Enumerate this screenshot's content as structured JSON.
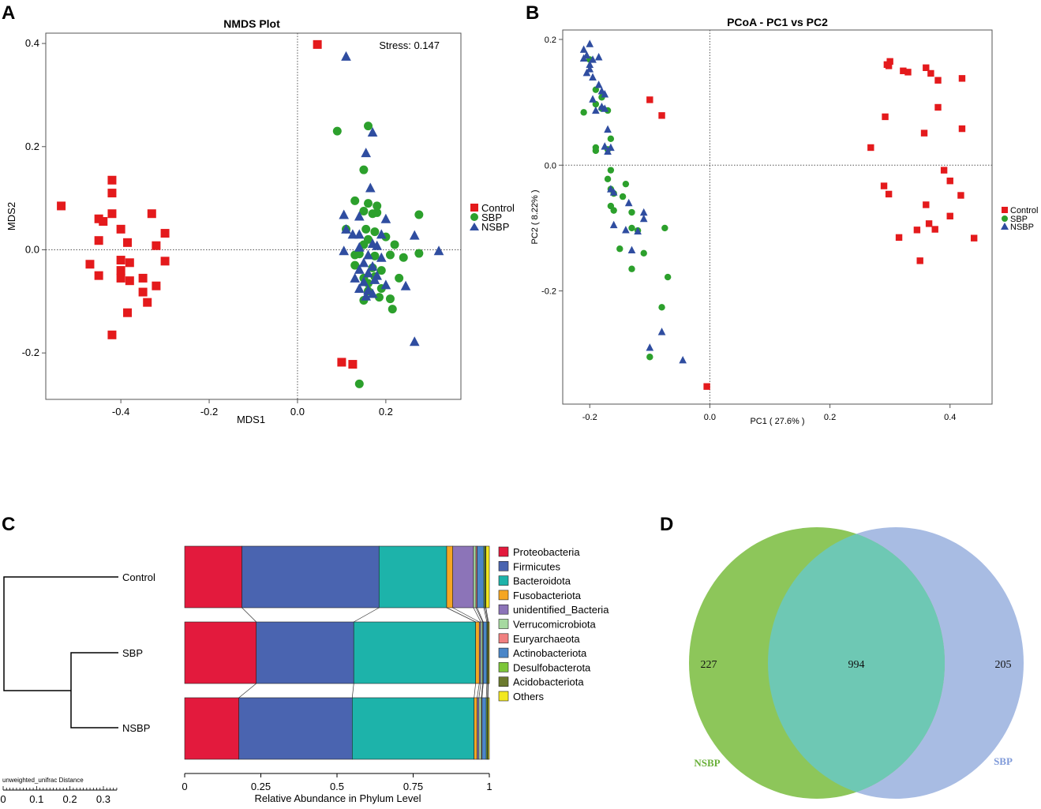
{
  "panel_labels": [
    "A",
    "B",
    "C",
    "D"
  ],
  "groups": {
    "Control": {
      "color": "#e41a1c",
      "marker": "square"
    },
    "SBP": {
      "color": "#2ca02c",
      "marker": "circle"
    },
    "NSBP": {
      "color": "#2f4da0",
      "marker": "triangle"
    }
  },
  "chart_data": [
    {
      "id": "A",
      "type": "scatter",
      "title": "NMDS Plot",
      "xlabel": "MDS1",
      "ylabel": "MDS2",
      "annotation": "Stress:  0.147",
      "xlim": [
        -0.57,
        0.37
      ],
      "ylim": [
        -0.29,
        0.42
      ],
      "xticks": [
        -0.4,
        -0.2,
        0.0,
        0.2
      ],
      "xtick_labels": [
        "-0.4",
        "-0.2",
        "0.0",
        "0.2"
      ],
      "yticks": [
        -0.2,
        0.0,
        0.2,
        0.4
      ],
      "ytick_labels": [
        "-0.2",
        "0.0",
        "0.2",
        "0.4"
      ],
      "legend": [
        "Control",
        "SBP",
        "NSBP"
      ],
      "series": [
        {
          "name": "Control",
          "points": [
            [
              -0.535,
              0.085
            ],
            [
              -0.42,
              0.135
            ],
            [
              -0.42,
              0.11
            ],
            [
              -0.45,
              0.06
            ],
            [
              -0.44,
              0.055
            ],
            [
              -0.42,
              0.07
            ],
            [
              -0.33,
              0.07
            ],
            [
              -0.3,
              0.032
            ],
            [
              -0.4,
              0.04
            ],
            [
              -0.45,
              0.018
            ],
            [
              -0.385,
              0.014
            ],
            [
              -0.32,
              0.008
            ],
            [
              -0.47,
              -0.028
            ],
            [
              -0.4,
              -0.02
            ],
            [
              -0.38,
              -0.025
            ],
            [
              -0.3,
              -0.022
            ],
            [
              -0.45,
              -0.05
            ],
            [
              -0.4,
              -0.04
            ],
            [
              -0.4,
              -0.055
            ],
            [
              -0.38,
              -0.06
            ],
            [
              -0.35,
              -0.055
            ],
            [
              -0.32,
              -0.07
            ],
            [
              -0.35,
              -0.082
            ],
            [
              -0.34,
              -0.102
            ],
            [
              -0.385,
              -0.122
            ],
            [
              -0.42,
              -0.165
            ],
            [
              0.045,
              0.398
            ],
            [
              0.1,
              -0.218
            ],
            [
              0.125,
              -0.222
            ]
          ]
        },
        {
          "name": "SBP",
          "points": [
            [
              0.09,
              0.23
            ],
            [
              0.16,
              0.24
            ],
            [
              0.15,
              0.155
            ],
            [
              0.13,
              0.095
            ],
            [
              0.16,
              0.09
            ],
            [
              0.18,
              0.085
            ],
            [
              0.18,
              0.072
            ],
            [
              0.17,
              0.07
            ],
            [
              0.275,
              0.068
            ],
            [
              0.15,
              0.075
            ],
            [
              0.11,
              0.04
            ],
            [
              0.155,
              0.04
            ],
            [
              0.175,
              0.035
            ],
            [
              0.2,
              0.025
            ],
            [
              0.16,
              0.02
            ],
            [
              0.15,
              0.01
            ],
            [
              0.22,
              0.01
            ],
            [
              0.14,
              -0.008
            ],
            [
              0.13,
              -0.01
            ],
            [
              0.175,
              -0.012
            ],
            [
              0.21,
              -0.01
            ],
            [
              0.275,
              -0.007
            ],
            [
              0.24,
              -0.015
            ],
            [
              0.13,
              -0.03
            ],
            [
              0.17,
              -0.035
            ],
            [
              0.19,
              -0.04
            ],
            [
              0.23,
              -0.055
            ],
            [
              0.15,
              -0.055
            ],
            [
              0.19,
              -0.075
            ],
            [
              0.16,
              -0.08
            ],
            [
              0.185,
              -0.092
            ],
            [
              0.15,
              -0.098
            ],
            [
              0.21,
              -0.095
            ],
            [
              0.215,
              -0.115
            ],
            [
              0.14,
              -0.26
            ],
            [
              0.16,
              -0.065
            ],
            [
              0.175,
              -0.052
            ]
          ]
        },
        {
          "name": "NSBP",
          "points": [
            [
              0.11,
              0.375
            ],
            [
              0.17,
              0.228
            ],
            [
              0.155,
              0.188
            ],
            [
              0.165,
              0.12
            ],
            [
              0.105,
              0.068
            ],
            [
              0.14,
              0.065
            ],
            [
              0.2,
              0.06
            ],
            [
              0.11,
              0.04
            ],
            [
              0.125,
              0.03
            ],
            [
              0.14,
              0.03
            ],
            [
              0.19,
              0.03
            ],
            [
              0.265,
              0.028
            ],
            [
              0.32,
              -0.002
            ],
            [
              0.17,
              0.012
            ],
            [
              0.18,
              0.008
            ],
            [
              0.105,
              -0.002
            ],
            [
              0.14,
              0.005
            ],
            [
              0.16,
              -0.01
            ],
            [
              0.19,
              -0.015
            ],
            [
              0.15,
              -0.025
            ],
            [
              0.17,
              -0.032
            ],
            [
              0.14,
              -0.038
            ],
            [
              0.16,
              -0.045
            ],
            [
              0.18,
              -0.05
            ],
            [
              0.13,
              -0.055
            ],
            [
              0.15,
              -0.062
            ],
            [
              0.175,
              -0.058
            ],
            [
              0.2,
              -0.068
            ],
            [
              0.245,
              -0.07
            ],
            [
              0.14,
              -0.075
            ],
            [
              0.16,
              -0.078
            ],
            [
              0.17,
              -0.085
            ],
            [
              0.155,
              -0.09
            ],
            [
              0.265,
              -0.178
            ]
          ]
        }
      ]
    },
    {
      "id": "B",
      "type": "scatter",
      "title": "PCoA - PC1 vs PC2",
      "xlabel": "PC1 ( 27.6% )",
      "ylabel": "PC2 ( 8.22% )",
      "xlim": [
        -0.245,
        0.47
      ],
      "ylim": [
        -0.38,
        0.215
      ],
      "xticks": [
        -0.2,
        0.0,
        0.2,
        0.4
      ],
      "xtick_labels": [
        "-0.2",
        "0.0",
        "0.2",
        "0.4"
      ],
      "yticks": [
        -0.2,
        0.0,
        0.2
      ],
      "ytick_labels": [
        "-0.2",
        "0.0",
        "0.2"
      ],
      "legend": [
        "Control",
        "SBP",
        "NSBP"
      ],
      "series": [
        {
          "name": "Control",
          "points": [
            [
              0.295,
              0.16
            ],
            [
              0.3,
              0.165
            ],
            [
              0.298,
              0.158
            ],
            [
              0.322,
              0.15
            ],
            [
              0.33,
              0.148
            ],
            [
              0.36,
              0.155
            ],
            [
              0.368,
              0.146
            ],
            [
              0.38,
              0.135
            ],
            [
              0.42,
              0.138
            ],
            [
              0.38,
              0.092
            ],
            [
              0.292,
              0.077
            ],
            [
              0.357,
              0.051
            ],
            [
              0.42,
              0.058
            ],
            [
              0.268,
              0.028
            ],
            [
              0.39,
              -0.008
            ],
            [
              0.4,
              -0.025
            ],
            [
              0.29,
              -0.033
            ],
            [
              0.298,
              -0.046
            ],
            [
              0.418,
              -0.048
            ],
            [
              0.36,
              -0.063
            ],
            [
              0.4,
              -0.081
            ],
            [
              0.365,
              -0.093
            ],
            [
              0.375,
              -0.102
            ],
            [
              0.345,
              -0.103
            ],
            [
              0.315,
              -0.115
            ],
            [
              0.44,
              -0.116
            ],
            [
              0.35,
              -0.152
            ],
            [
              -0.1,
              0.104
            ],
            [
              -0.08,
              0.079
            ],
            [
              -0.005,
              -0.352
            ]
          ]
        },
        {
          "name": "SBP",
          "points": [
            [
              -0.2,
              0.168
            ],
            [
              -0.19,
              0.12
            ],
            [
              -0.18,
              0.108
            ],
            [
              -0.19,
              0.097
            ],
            [
              -0.18,
              0.09
            ],
            [
              -0.17,
              0.087
            ],
            [
              -0.21,
              0.084
            ],
            [
              -0.19,
              0.028
            ],
            [
              -0.165,
              0.042
            ],
            [
              -0.17,
              0.025
            ],
            [
              -0.19,
              0.023
            ],
            [
              -0.165,
              -0.008
            ],
            [
              -0.17,
              -0.022
            ],
            [
              -0.14,
              -0.03
            ],
            [
              -0.165,
              -0.038
            ],
            [
              -0.16,
              -0.045
            ],
            [
              -0.145,
              -0.05
            ],
            [
              -0.165,
              -0.065
            ],
            [
              -0.16,
              -0.072
            ],
            [
              -0.13,
              -0.075
            ],
            [
              -0.075,
              -0.1
            ],
            [
              -0.13,
              -0.1
            ],
            [
              -0.12,
              -0.104
            ],
            [
              -0.15,
              -0.133
            ],
            [
              -0.11,
              -0.14
            ],
            [
              -0.13,
              -0.165
            ],
            [
              -0.07,
              -0.178
            ],
            [
              -0.08,
              -0.226
            ],
            [
              -0.1,
              -0.305
            ]
          ]
        },
        {
          "name": "NSBP",
          "points": [
            [
              -0.2,
              0.193
            ],
            [
              -0.21,
              0.184
            ],
            [
              -0.205,
              0.175
            ],
            [
              -0.21,
              0.17
            ],
            [
              -0.195,
              0.168
            ],
            [
              -0.2,
              0.16
            ],
            [
              -0.2,
              0.153
            ],
            [
              -0.185,
              0.172
            ],
            [
              -0.205,
              0.147
            ],
            [
              -0.195,
              0.14
            ],
            [
              -0.185,
              0.128
            ],
            [
              -0.18,
              0.118
            ],
            [
              -0.175,
              0.113
            ],
            [
              -0.195,
              0.105
            ],
            [
              -0.175,
              0.09
            ],
            [
              -0.19,
              0.087
            ],
            [
              -0.18,
              0.093
            ],
            [
              -0.17,
              0.057
            ],
            [
              -0.175,
              0.03
            ],
            [
              -0.165,
              0.028
            ],
            [
              -0.17,
              0.022
            ],
            [
              -0.165,
              -0.038
            ],
            [
              -0.16,
              -0.043
            ],
            [
              -0.135,
              -0.06
            ],
            [
              -0.11,
              -0.075
            ],
            [
              -0.11,
              -0.085
            ],
            [
              -0.16,
              -0.095
            ],
            [
              -0.14,
              -0.103
            ],
            [
              -0.12,
              -0.105
            ],
            [
              -0.13,
              -0.135
            ],
            [
              -0.08,
              -0.265
            ],
            [
              -0.1,
              -0.29
            ],
            [
              -0.045,
              -0.31
            ]
          ]
        }
      ]
    },
    {
      "id": "C",
      "type": "bar",
      "orientation": "horizontal-stacked",
      "xlabel": "Relative Abundance in Phylum Level",
      "xlim": [
        0,
        1
      ],
      "xticks": [
        0,
        0.25,
        0.5,
        0.75,
        1
      ],
      "xtick_labels": [
        "0",
        "0.25",
        "0.5",
        "0.75",
        "1"
      ],
      "categories": [
        "Control",
        "SBP",
        "NSBP"
      ],
      "series": [
        {
          "name": "Proteobacteria",
          "color": "#e31a3d",
          "values": [
            0.188,
            0.235,
            0.178
          ]
        },
        {
          "name": "Firmicutes",
          "color": "#4a64b0",
          "values": [
            0.45,
            0.32,
            0.372
          ]
        },
        {
          "name": "Bacteroidota",
          "color": "#1db3aa",
          "values": [
            0.222,
            0.4,
            0.4
          ]
        },
        {
          "name": "Fusobacteriota",
          "color": "#f5a623",
          "values": [
            0.02,
            0.012,
            0.01
          ]
        },
        {
          "name": "unidentified_Bacteria",
          "color": "#8c74b8",
          "values": [
            0.068,
            0.005,
            0.006
          ]
        },
        {
          "name": "Verrucomicrobiota",
          "color": "#a6d9a0",
          "values": [
            0.008,
            0.006,
            0.008
          ]
        },
        {
          "name": "Euryarchaeota",
          "color": "#f08080",
          "values": [
            0.004,
            0.002,
            0.002
          ]
        },
        {
          "name": "Actinobacteriota",
          "color": "#4a86c8",
          "values": [
            0.022,
            0.012,
            0.014
          ]
        },
        {
          "name": "Desulfobacterota",
          "color": "#7cc63a",
          "values": [
            0.004,
            0.003,
            0.004
          ]
        },
        {
          "name": "Acidobacteriota",
          "color": "#6b7a2e",
          "values": [
            0.003,
            0.002,
            0.002
          ]
        },
        {
          "name": "Others",
          "color": "#f2e81f",
          "values": [
            0.011,
            0.003,
            0.004
          ]
        }
      ],
      "dendrogram": {
        "label": "unweighted_unifrac Distance",
        "scale_ticks": [
          "0",
          "0.1",
          "0.2",
          "0.3"
        ]
      }
    },
    {
      "id": "D",
      "type": "venn",
      "sets": [
        {
          "name": "NSBP",
          "unique": 227,
          "color": "#8dc65a",
          "label_color": "#6ab03a"
        },
        {
          "name": "SBP",
          "unique": 205,
          "color": "#a8bce3",
          "label_color": "#7f9ad9"
        }
      ],
      "intersection": 994,
      "intersection_color": "#6ec8b4"
    }
  ]
}
